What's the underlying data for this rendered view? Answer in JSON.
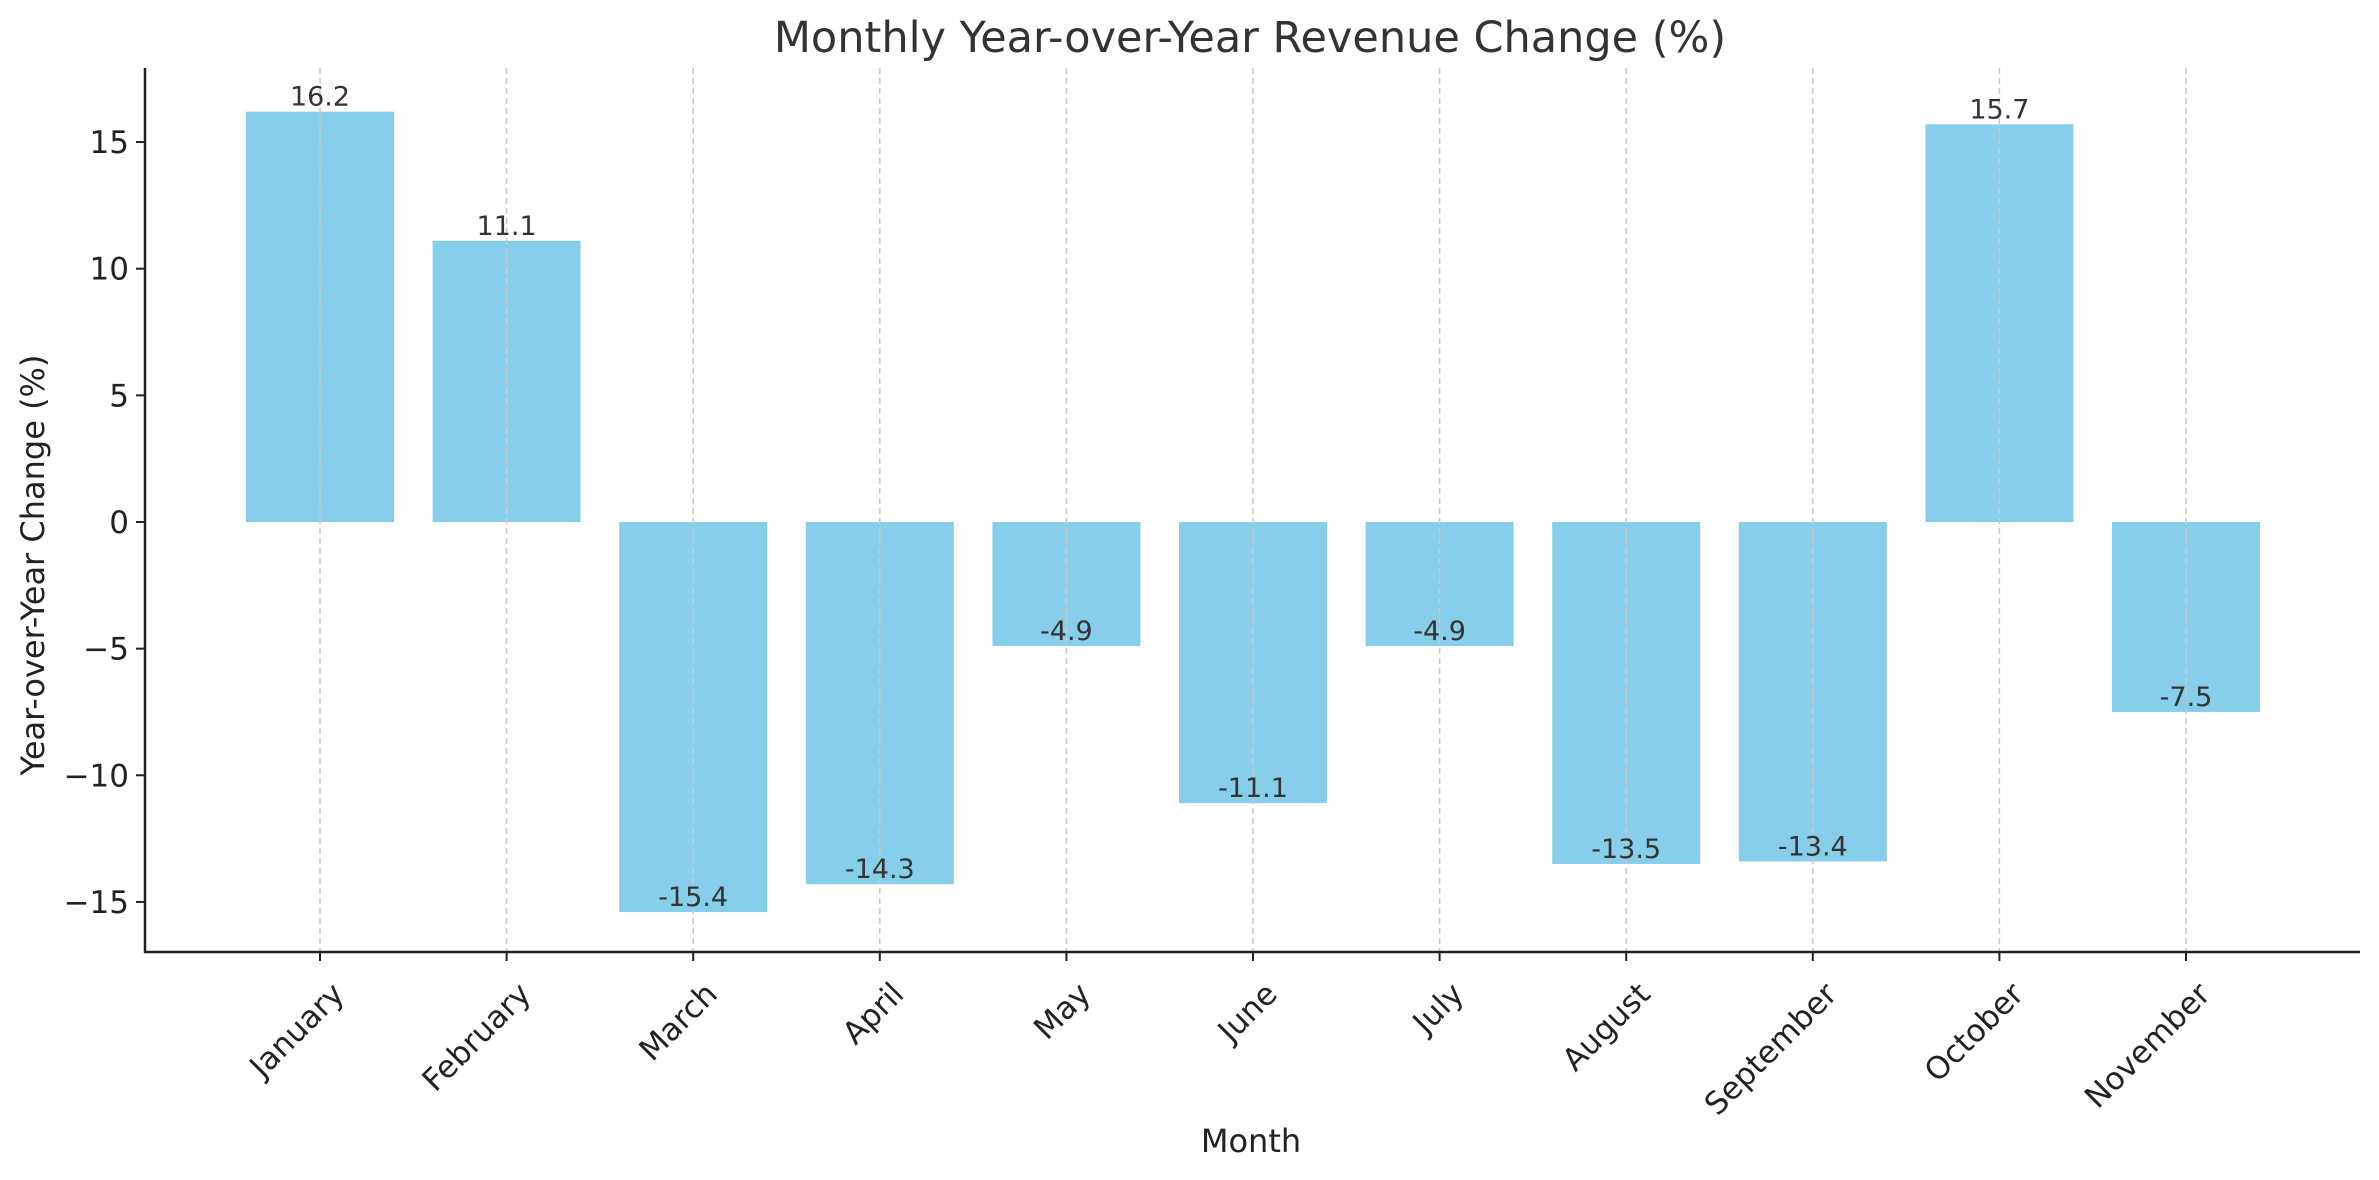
{
  "chart_data": {
    "type": "bar",
    "title": "Monthly Year-over-Year Revenue Change (%)",
    "xlabel": "Month",
    "ylabel": "Year-over-Year Change (%)",
    "categories": [
      "January",
      "February",
      "March",
      "April",
      "May",
      "June",
      "July",
      "August",
      "September",
      "October",
      "November"
    ],
    "values": [
      16.2,
      11.1,
      -15.4,
      -14.3,
      -4.9,
      -11.1,
      -4.9,
      -13.5,
      -13.4,
      15.7,
      -7.5
    ],
    "value_labels": [
      "16.2",
      "11.1",
      "-15.4",
      "-14.3",
      "-4.9",
      "-11.1",
      "-4.9",
      "-13.5",
      "-13.4",
      "15.7",
      "-7.5"
    ],
    "ylim": [
      -17,
      17.8
    ],
    "yticks": [
      -15,
      -10,
      -5,
      0,
      5,
      10,
      15
    ],
    "ytick_labels": [
      "−15",
      "−10",
      "−5",
      "0",
      "5",
      "10",
      "15"
    ],
    "grid": "vertical dashed",
    "bar_color": "#87CEEB",
    "grid_color": "#c8c8c8",
    "axis_color": "#222222"
  }
}
